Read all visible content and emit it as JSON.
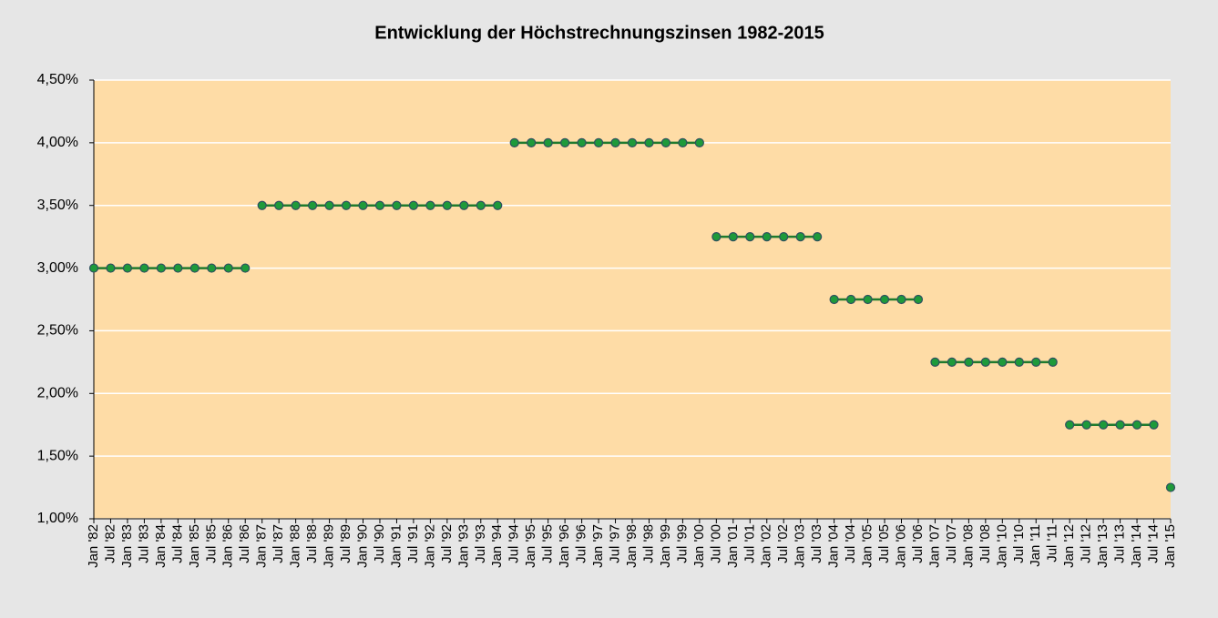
{
  "chart_data": {
    "type": "line",
    "title": "Entwicklung der Höchstrechnungszinsen  1982-2015",
    "categories": [
      "Jan '82",
      "Jul '82",
      "Jan '83",
      "Jul '83",
      "Jan '84",
      "Jul '84",
      "Jan '85",
      "Jul '85",
      "Jan '86",
      "Jul '86",
      "Jan '87",
      "Jul '87",
      "Jan '88",
      "Jul '88",
      "Jan '89",
      "Jul '89",
      "Jan '90",
      "Jul '90",
      "Jan '91",
      "Jul '91",
      "Jan '92",
      "Jul '92",
      "Jan '93",
      "Jul '93",
      "Jan '94",
      "Jul '94",
      "Jan '95",
      "Jul '95",
      "Jan '96",
      "Jul '96",
      "Jan '97",
      "Jul '97",
      "Jan '98",
      "Jul '98",
      "Jan '99",
      "Jul '99",
      "Jan '00",
      "Jul '00",
      "Jan '01",
      "Jul '01",
      "Jan '02",
      "Jul '02",
      "Jan '03",
      "Jul '03",
      "Jan '04",
      "Jul '04",
      "Jan '05",
      "Jul '05",
      "Jan '06",
      "Jul '06",
      "Jan '07",
      "Jul '07",
      "Jan '08",
      "Jul '08",
      "Jan '10",
      "Jul '10",
      "Jan '11",
      "Jul '11",
      "Jan '12",
      "Jul '12",
      "Jan '13",
      "Jul '13",
      "Jan '14",
      "Jul '14",
      "Jan '15"
    ],
    "values": [
      3,
      3,
      3,
      3,
      3,
      3,
      3,
      3,
      3,
      3,
      3.5,
      3.5,
      3.5,
      3.5,
      3.5,
      3.5,
      3.5,
      3.5,
      3.5,
      3.5,
      3.5,
      3.5,
      3.5,
      3.5,
      3.5,
      4,
      4,
      4,
      4,
      4,
      4,
      4,
      4,
      4,
      4,
      4,
      4,
      3.25,
      3.25,
      3.25,
      3.25,
      3.25,
      3.25,
      3.25,
      2.75,
      2.75,
      2.75,
      2.75,
      2.75,
      2.75,
      2.25,
      2.25,
      2.25,
      2.25,
      2.25,
      2.25,
      2.25,
      2.25,
      1.75,
      1.75,
      1.75,
      1.75,
      1.75,
      1.75,
      1.25
    ],
    "color": "#1f7a2e",
    "marker_color": "#1e9a3a",
    "ylim": [
      1,
      4.5
    ],
    "yticks": [
      {
        "value": 1,
        "label": "1,00%"
      },
      {
        "value": 1.5,
        "label": "1,50%"
      },
      {
        "value": 2,
        "label": "2,00%"
      },
      {
        "value": 2.5,
        "label": "2,50%"
      },
      {
        "value": 3,
        "label": "3,00%"
      },
      {
        "value": 3.5,
        "label": "3,50%"
      },
      {
        "value": 4,
        "label": "4,00%"
      },
      {
        "value": 4.5,
        "label": "4,50%"
      }
    ],
    "grid": true
  }
}
